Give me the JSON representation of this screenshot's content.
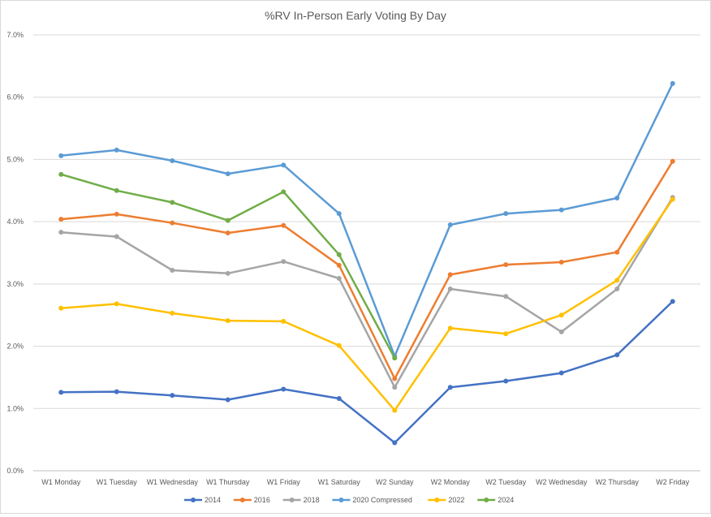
{
  "chart_data": {
    "type": "line",
    "title": "%RV In-Person Early Voting By Day",
    "categories": [
      "W1 Monday",
      "W1 Tuesday",
      "W1 Wednesday",
      "W1 Thursday",
      "W1 Friday",
      "W1 Saturday",
      "W2 Sunday",
      "W2 Monday",
      "W2 Tuesday",
      "W2 Wednesday",
      "W2 Thursday",
      "W2 Friday"
    ],
    "y_ticks": [
      "0.0%",
      "1.0%",
      "2.0%",
      "3.0%",
      "4.0%",
      "5.0%",
      "6.0%",
      "7.0%"
    ],
    "ylim": [
      0,
      7
    ],
    "grid": true,
    "legend_position": "bottom",
    "series": [
      {
        "name": "2014",
        "color": "#4472C4",
        "values": [
          1.26,
          1.27,
          1.21,
          1.14,
          1.31,
          1.16,
          0.45,
          1.34,
          1.44,
          1.57,
          1.86,
          2.72
        ]
      },
      {
        "name": "2016",
        "color": "#ED7D31",
        "values": [
          4.04,
          4.12,
          3.98,
          3.82,
          3.94,
          3.3,
          1.48,
          3.15,
          3.31,
          3.35,
          3.51,
          4.97
        ]
      },
      {
        "name": "2018",
        "color": "#A5A5A5",
        "values": [
          3.83,
          3.76,
          3.22,
          3.17,
          3.36,
          3.09,
          1.34,
          2.92,
          2.8,
          2.23,
          2.92,
          4.39
        ]
      },
      {
        "name": "2020 Compressed",
        "color": "#5B9BD5",
        "values": [
          5.06,
          5.15,
          4.98,
          4.77,
          4.91,
          4.13,
          1.84,
          3.95,
          4.13,
          4.19,
          4.38,
          6.22
        ]
      },
      {
        "name": "2022",
        "color": "#FFC000",
        "values": [
          2.61,
          2.68,
          2.53,
          2.41,
          2.4,
          2.01,
          0.97,
          2.29,
          2.2,
          2.5,
          3.06,
          4.36
        ]
      },
      {
        "name": "2024",
        "color": "#70AD47",
        "values": [
          4.76,
          4.5,
          4.31,
          4.02,
          4.48,
          3.47,
          1.81,
          null,
          null,
          null,
          null,
          null
        ]
      }
    ]
  }
}
